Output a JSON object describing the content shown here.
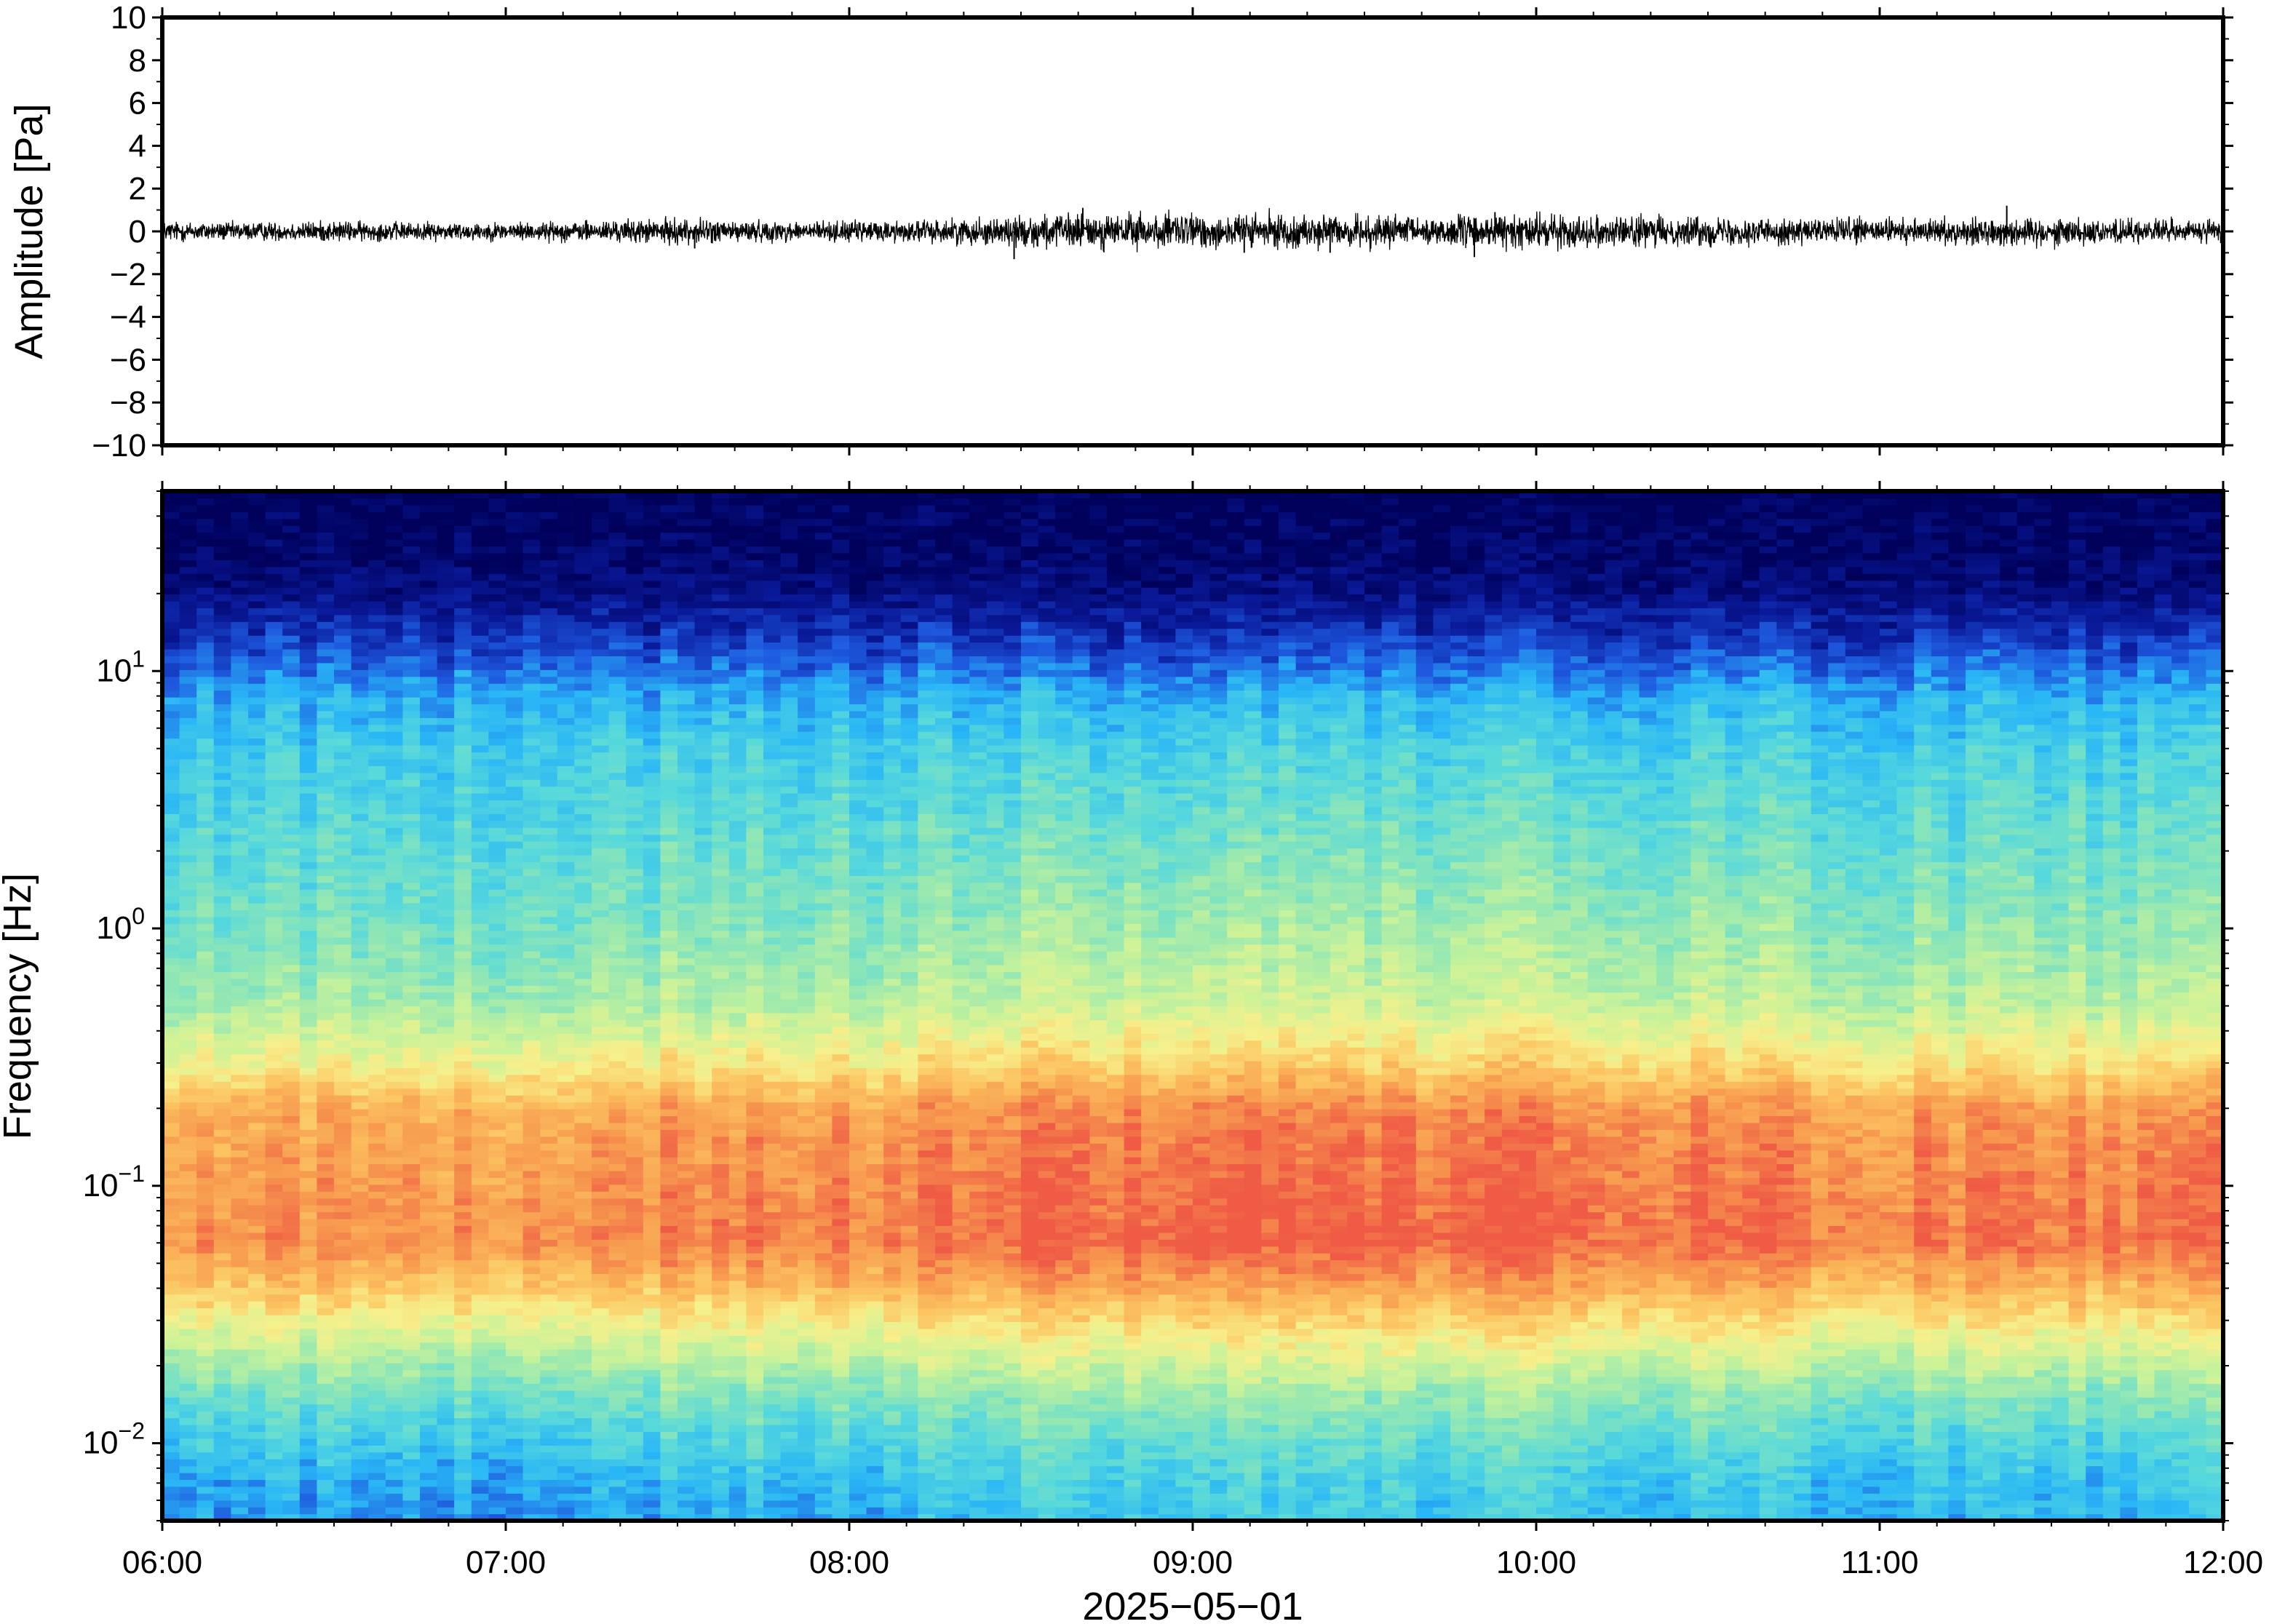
{
  "chart_data": [
    {
      "type": "line",
      "ylabel": "Amplitude [Pa]",
      "ylim": [
        -10,
        10
      ],
      "y_ticks": [
        "10",
        "8",
        "6",
        "4",
        "2",
        "0",
        "−2",
        "−4",
        "−6",
        "−8",
        "−10"
      ],
      "y_tick_values": [
        10,
        8,
        6,
        4,
        2,
        0,
        -2,
        -4,
        -6,
        -8,
        -10
      ],
      "xlim": [
        "06:00",
        "12:00"
      ],
      "grid": false,
      "line_color": "#000000",
      "series": [
        {
          "x_hours": [
            6.0,
            6.25,
            6.5,
            6.75,
            7.0,
            7.25,
            7.5,
            7.75,
            8.0,
            8.25,
            8.5,
            8.75,
            9.0,
            9.25,
            9.5,
            9.75,
            10.0,
            10.25,
            10.5,
            10.75,
            11.0,
            11.25,
            11.5,
            11.75,
            12.0
          ],
          "envelope_pa": [
            0.4,
            0.35,
            0.4,
            0.35,
            0.35,
            0.4,
            0.5,
            0.4,
            0.4,
            0.45,
            0.6,
            0.7,
            0.7,
            0.65,
            0.6,
            0.6,
            0.65,
            0.6,
            0.55,
            0.5,
            0.5,
            0.5,
            0.55,
            0.45,
            0.45
          ],
          "peaks": [
            {
              "x": 7.55,
              "y": -0.8
            },
            {
              "x": 8.48,
              "y": -1.3
            },
            {
              "x": 8.68,
              "y": 1.1
            },
            {
              "x": 9.15,
              "y": -1.0
            },
            {
              "x": 9.4,
              "y": -1.0
            },
            {
              "x": 9.82,
              "y": -1.2
            },
            {
              "x": 9.88,
              "y": 0.9
            },
            {
              "x": 11.37,
              "y": 1.2
            }
          ]
        }
      ]
    },
    {
      "type": "heatmap",
      "ylabel": "Frequency [Hz]",
      "xlabel": "2025−05−01",
      "y_scale": "log",
      "ylim": [
        0.005,
        50
      ],
      "y_ticks": [
        {
          "value": 10,
          "base": "10",
          "exp": "1"
        },
        {
          "value": 1,
          "base": "10",
          "exp": "0"
        },
        {
          "value": 0.1,
          "base": "10",
          "exp": "−1"
        },
        {
          "value": 0.01,
          "base": "10",
          "exp": "−2"
        }
      ],
      "x_ticks": [
        "06:00",
        "07:00",
        "08:00",
        "09:00",
        "10:00",
        "11:00",
        "12:00"
      ],
      "x_tick_hours": [
        6,
        7,
        8,
        9,
        10,
        11,
        12
      ],
      "xlim": [
        "06:00",
        "12:00"
      ],
      "colormap": "jet",
      "colormap_stops": [
        "#00005a",
        "#0a1a9a",
        "#1e5adf",
        "#29b6f6",
        "#56d8dc",
        "#8ee6b6",
        "#c8f29a",
        "#f6f08c",
        "#fcc461",
        "#f79a4f",
        "#ef5b45"
      ],
      "grid": false,
      "spectrum_profile": {
        "freq_hz": [
          50,
          30,
          20,
          12,
          8,
          5,
          2,
          1,
          0.5,
          0.3,
          0.2,
          0.15,
          0.1,
          0.06,
          0.04,
          0.025,
          0.015,
          0.01,
          0.007,
          0.005
        ],
        "relative_level": [
          0.0,
          0.02,
          0.06,
          0.18,
          0.3,
          0.36,
          0.42,
          0.47,
          0.55,
          0.7,
          0.85,
          0.88,
          0.9,
          0.92,
          0.8,
          0.62,
          0.45,
          0.36,
          0.3,
          0.28
        ]
      },
      "time_activity": {
        "x_hours": [
          6.0,
          6.5,
          7.0,
          7.5,
          8.0,
          8.5,
          9.0,
          9.5,
          10.0,
          10.5,
          11.0,
          11.5,
          12.0
        ],
        "relative_boost": [
          0.0,
          0.0,
          -0.02,
          0.02,
          0.02,
          0.06,
          0.09,
          0.06,
          0.08,
          0.05,
          0.03,
          0.03,
          0.05
        ]
      }
    }
  ]
}
